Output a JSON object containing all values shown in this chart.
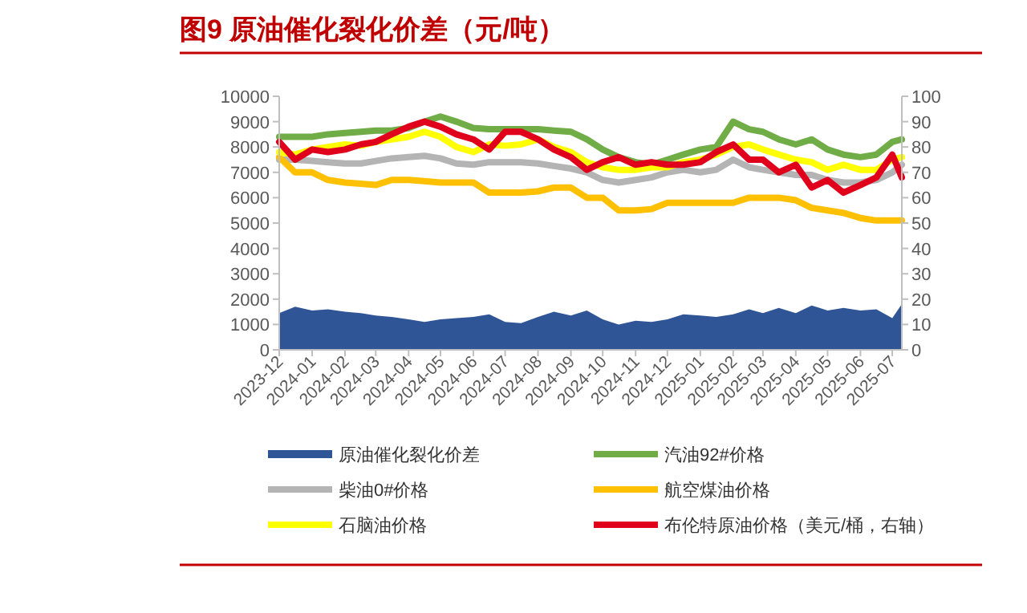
{
  "chart_data": {
    "type": "line",
    "title": "图9  原油催化裂化价差（元/吨）",
    "x": [
      "2023-12-01",
      "2023-12-16",
      "2024-01-01",
      "2024-01-16",
      "2024-02-01",
      "2024-02-16",
      "2024-03-01",
      "2024-03-16",
      "2024-04-01",
      "2024-04-16",
      "2024-05-01",
      "2024-05-16",
      "2024-06-01",
      "2024-06-16",
      "2024-07-01",
      "2024-07-16",
      "2024-08-01",
      "2024-08-16",
      "2024-09-01",
      "2024-09-16",
      "2024-10-01",
      "2024-10-16",
      "2024-11-01",
      "2024-11-16",
      "2024-12-01",
      "2024-12-16",
      "2025-01-01",
      "2025-01-16",
      "2025-02-01",
      "2025-02-16",
      "2025-03-01",
      "2025-03-16",
      "2025-04-01",
      "2025-04-16",
      "2025-05-01",
      "2025-05-16",
      "2025-06-01",
      "2025-06-16",
      "2025-07-01",
      "2025-07-10"
    ],
    "series": [
      {
        "name": "原油催化裂化价差",
        "type": "area",
        "color": "#2f5597",
        "values": [
          1450,
          1700,
          1550,
          1600,
          1500,
          1450,
          1350,
          1300,
          1200,
          1100,
          1200,
          1250,
          1300,
          1400,
          1100,
          1050,
          1300,
          1500,
          1350,
          1550,
          1200,
          1000,
          1150,
          1100,
          1200,
          1400,
          1350,
          1300,
          1400,
          1600,
          1450,
          1650,
          1450,
          1750,
          1550,
          1650,
          1550,
          1600,
          1250,
          1800
        ]
      },
      {
        "name": "汽油92#价格",
        "color": "#70ad47",
        "values": [
          8400,
          8400,
          8400,
          8500,
          8550,
          8600,
          8650,
          8650,
          8750,
          9000,
          9200,
          9000,
          8750,
          8700,
          8700,
          8700,
          8700,
          8650,
          8600,
          8300,
          7900,
          7600,
          7400,
          7300,
          7500,
          7700,
          7900,
          8000,
          9000,
          8700,
          8600,
          8300,
          8100,
          8300,
          7900,
          7700,
          7600,
          7700,
          8200,
          8300
        ]
      },
      {
        "name": "柴油0#价格",
        "color": "#b4b4b4",
        "values": [
          7500,
          7500,
          7450,
          7400,
          7350,
          7350,
          7450,
          7550,
          7600,
          7650,
          7550,
          7350,
          7300,
          7400,
          7400,
          7400,
          7350,
          7250,
          7150,
          7000,
          6700,
          6600,
          6700,
          6800,
          7000,
          7100,
          7000,
          7100,
          7500,
          7200,
          7100,
          7000,
          6900,
          6900,
          6700,
          6600,
          6600,
          6700,
          7000,
          7300
        ]
      },
      {
        "name": "航空煤油价格",
        "color": "#ffc000",
        "values": [
          7600,
          7000,
          7000,
          6700,
          6600,
          6550,
          6500,
          6700,
          6700,
          6650,
          6600,
          6600,
          6600,
          6200,
          6200,
          6200,
          6250,
          6400,
          6400,
          6000,
          6000,
          5500,
          5500,
          5550,
          5800,
          5800,
          5800,
          5800,
          5800,
          6000,
          6000,
          6000,
          5900,
          5600,
          5500,
          5400,
          5200,
          5100,
          5100,
          5100
        ]
      },
      {
        "name": "石脑油价格",
        "color": "#ffff00",
        "values": [
          7800,
          7700,
          7900,
          8000,
          8100,
          8050,
          8200,
          8300,
          8400,
          8600,
          8400,
          8000,
          7800,
          8100,
          8050,
          8100,
          8300,
          8000,
          7800,
          7400,
          7200,
          7100,
          7100,
          7200,
          7200,
          7400,
          7500,
          7700,
          8000,
          8100,
          7900,
          7700,
          7500,
          7400,
          7100,
          7300,
          7100,
          7100,
          7500,
          7600
        ]
      },
      {
        "name": "布伦特原油价格（美元/桶，右轴）",
        "color": "#e0001b",
        "axis": "y2",
        "values": [
          82,
          75,
          79,
          78,
          79,
          81,
          82,
          85,
          88,
          90,
          88,
          85,
          83,
          79,
          86,
          86,
          83,
          79,
          76,
          71,
          74,
          76,
          73,
          74,
          73,
          73,
          74,
          78,
          81,
          75,
          75,
          70,
          73,
          64,
          67,
          62,
          65,
          68,
          77,
          68
        ]
      }
    ],
    "xlim": [
      "2023-12-01",
      "2025-07-10"
    ],
    "xticks": [
      "2023-12",
      "2024-01",
      "2024-02",
      "2024-03",
      "2024-04",
      "2024-05",
      "2024-06",
      "2024-07",
      "2024-08",
      "2024-09",
      "2024-10",
      "2024-11",
      "2024-12",
      "2025-01",
      "2025-02",
      "2025-03",
      "2025-04",
      "2025-05",
      "2025-06",
      "2025-07"
    ],
    "ylim": [
      0,
      10000
    ],
    "yticks": [
      0,
      1000,
      2000,
      3000,
      4000,
      5000,
      6000,
      7000,
      8000,
      9000,
      10000
    ],
    "y2lim": [
      0,
      100
    ],
    "y2ticks": [
      0,
      10,
      20,
      30,
      40,
      50,
      60,
      70,
      80,
      90,
      100
    ],
    "legend": "bottom"
  }
}
